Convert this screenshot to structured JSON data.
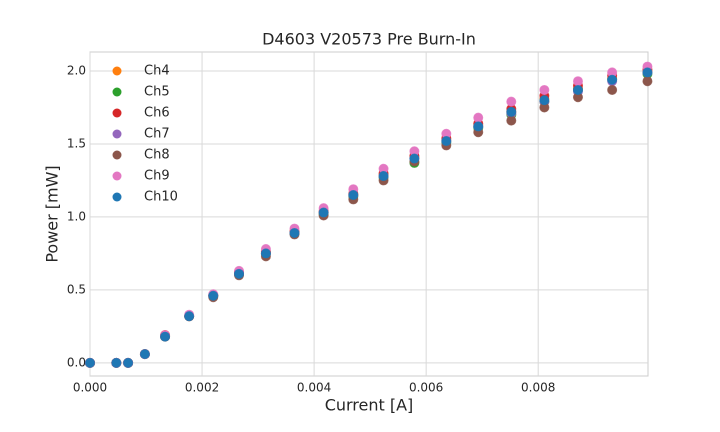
{
  "chart_data": {
    "type": "scatter",
    "title": "D4603 V20573 Pre Burn-In",
    "x_label": "Current [A]",
    "y_label": "Power [mW]",
    "x": [
      0,
      0.00047,
      0.00068,
      0.00098,
      0.00134,
      0.00177,
      0.0022,
      0.00266,
      0.00314,
      0.00365,
      0.00417,
      0.0047,
      0.00524,
      0.00579,
      0.00636,
      0.00693,
      0.00752,
      0.00811,
      0.00871,
      0.00932,
      0.00995
    ],
    "series": [
      {
        "name": "Ch4",
        "color": "#ff7f0e",
        "values": [
          0,
          0,
          0,
          0.06,
          0.19,
          0.32,
          0.46,
          0.62,
          0.76,
          0.9,
          1.03,
          1.15,
          1.29,
          1.41,
          1.53,
          1.63,
          1.72,
          1.81,
          1.88,
          1.95,
          2.0
        ]
      },
      {
        "name": "Ch5",
        "color": "#2ca02c",
        "values": [
          0,
          0,
          0,
          0.06,
          0.18,
          0.32,
          0.46,
          0.61,
          0.75,
          0.89,
          1.02,
          1.14,
          1.27,
          1.37,
          1.51,
          1.61,
          1.7,
          1.79,
          1.87,
          1.94,
          1.98
        ]
      },
      {
        "name": "Ch6",
        "color": "#d62728",
        "values": [
          0,
          0,
          0,
          0.06,
          0.19,
          0.32,
          0.46,
          0.62,
          0.76,
          0.9,
          1.04,
          1.16,
          1.3,
          1.42,
          1.54,
          1.64,
          1.74,
          1.83,
          1.9,
          1.97,
          2.01
        ]
      },
      {
        "name": "Ch7",
        "color": "#9467bd",
        "values": [
          0,
          0,
          0,
          0.06,
          0.18,
          0.32,
          0.46,
          0.61,
          0.75,
          0.89,
          1.03,
          1.15,
          1.28,
          1.4,
          1.52,
          1.62,
          1.71,
          1.79,
          1.86,
          1.93,
          1.99
        ]
      },
      {
        "name": "Ch8",
        "color": "#8c564b",
        "values": [
          0,
          0,
          0,
          0.06,
          0.18,
          0.32,
          0.45,
          0.6,
          0.73,
          0.88,
          1.01,
          1.12,
          1.25,
          1.38,
          1.49,
          1.58,
          1.66,
          1.75,
          1.82,
          1.87,
          1.93
        ]
      },
      {
        "name": "Ch9",
        "color": "#e377c2",
        "values": [
          0,
          0,
          0,
          0.06,
          0.19,
          0.33,
          0.47,
          0.63,
          0.78,
          0.92,
          1.06,
          1.19,
          1.33,
          1.45,
          1.57,
          1.68,
          1.79,
          1.87,
          1.93,
          1.99,
          2.03
        ]
      },
      {
        "name": "Ch10",
        "color": "#1f77b4",
        "values": [
          0,
          0,
          0,
          0.06,
          0.18,
          0.32,
          0.46,
          0.61,
          0.75,
          0.89,
          1.03,
          1.15,
          1.28,
          1.4,
          1.52,
          1.62,
          1.72,
          1.8,
          1.87,
          1.94,
          1.99
        ]
      }
    ],
    "xlim": [
      0,
      0.00996
    ],
    "ylim": [
      -0.09,
      2.13
    ],
    "xticks": [
      {
        "value": 0,
        "label": "0.000"
      },
      {
        "value": 0.002,
        "label": "0.002"
      },
      {
        "value": 0.004,
        "label": "0.004"
      },
      {
        "value": 0.006,
        "label": "0.006"
      },
      {
        "value": 0.008,
        "label": "0.008"
      }
    ],
    "yticks": [
      {
        "value": 0,
        "label": "0.0"
      },
      0.5,
      {
        "value": 1,
        "label": "1.0"
      },
      1.5,
      {
        "value": 2,
        "label": "2.0"
      }
    ],
    "grid": true,
    "legend": "upper-left"
  }
}
